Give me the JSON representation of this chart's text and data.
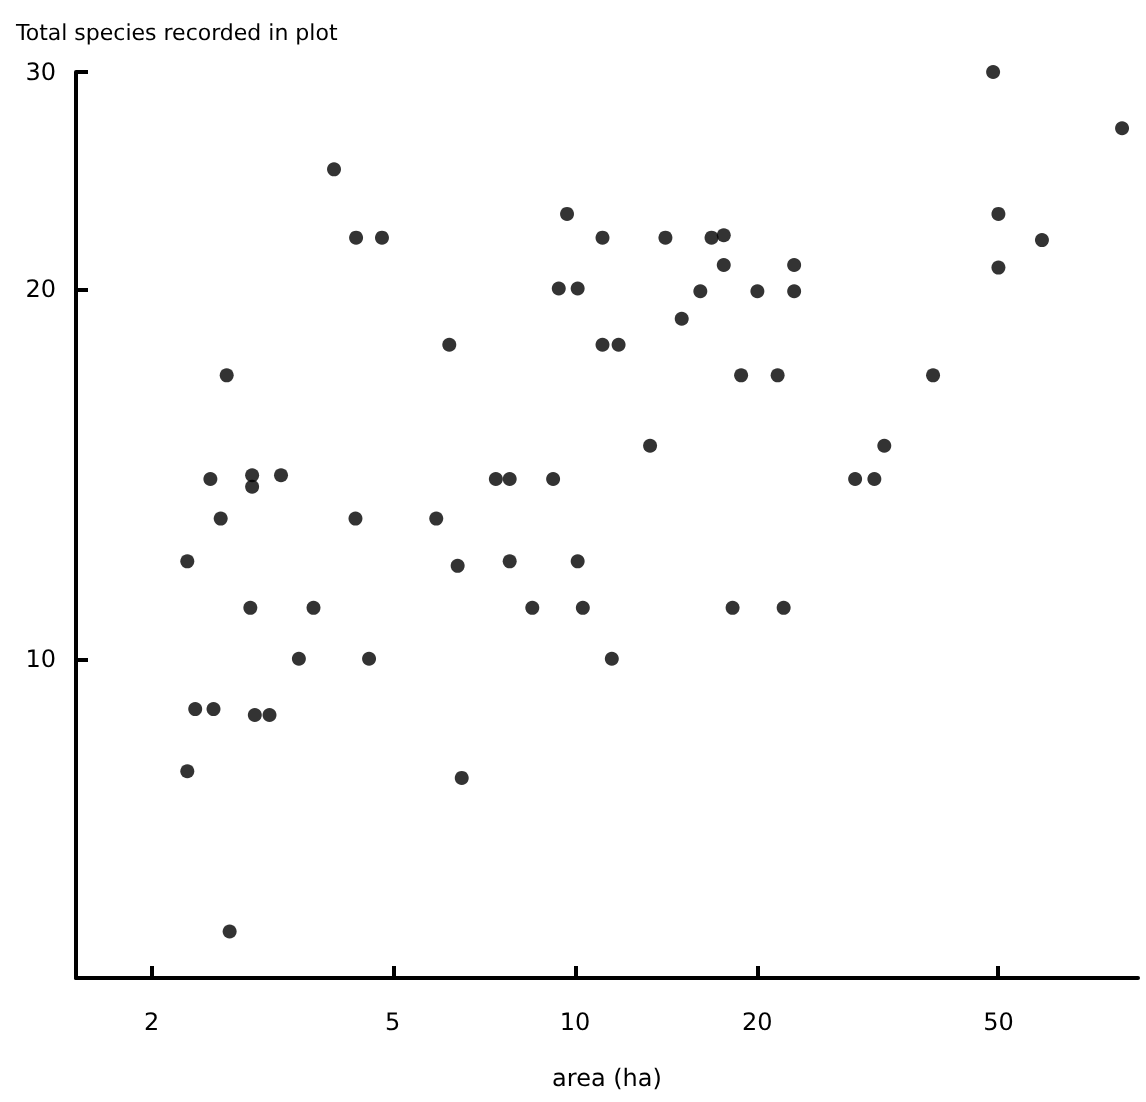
{
  "chart_data": {
    "type": "scatter",
    "ylabel": "Total species recorded in plot",
    "xlabel": "area (ha)",
    "log": "xy",
    "marker": "circle",
    "grid": false,
    "xlim": [
      1.5,
      85
    ],
    "xticks": [
      2,
      5,
      10,
      20,
      50
    ],
    "ylim": [
      5.5,
      30
    ],
    "yticks": [
      10,
      20,
      30
    ],
    "series": [
      {
        "color": "#000000",
        "x": [
          4.0,
          4.35,
          4.8,
          9.7,
          11.1,
          9.4,
          10.1,
          6.2,
          11.1,
          11.8,
          2.66,
          2.5,
          2.93,
          2.93,
          3.27,
          7.4,
          7.8,
          9.2,
          49,
          80,
          50,
          59,
          50,
          14.1,
          16.8,
          17.6,
          17.6,
          23,
          16.1,
          20,
          23,
          15,
          18.8,
          21.6,
          39,
          13.3,
          32.4,
          29,
          31.2,
          2.6,
          4.34,
          5.9,
          2.29,
          6.4,
          7.8,
          10.1,
          2.91,
          3.7,
          8.5,
          10.3,
          3.5,
          4.57,
          11.5,
          2.36,
          2.53,
          2.96,
          3.13,
          2.29,
          6.5,
          2.69,
          18.2,
          22.1
        ],
        "values": [
          25,
          22,
          22,
          23,
          22,
          20,
          20,
          18,
          18,
          18,
          17,
          14,
          14.1,
          13.8,
          14.1,
          14,
          14,
          14,
          30,
          27,
          23,
          21.9,
          20.8,
          22,
          22,
          22.1,
          20.9,
          20.9,
          19.9,
          19.9,
          19.9,
          18.9,
          17,
          17,
          17,
          14.9,
          14.9,
          14,
          14,
          13,
          13,
          13,
          12,
          11.9,
          12,
          12,
          11,
          11,
          11,
          11,
          10,
          10,
          10,
          9.1,
          9.1,
          9.0,
          9.0,
          8.1,
          8.0,
          6.0,
          11,
          11
        ]
      }
    ]
  }
}
